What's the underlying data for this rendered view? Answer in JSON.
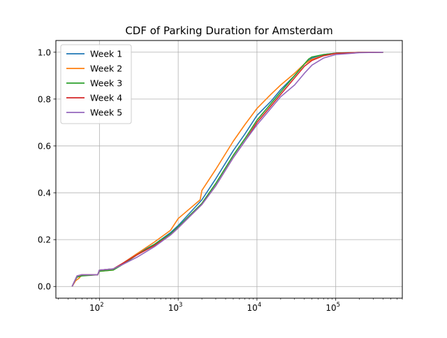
{
  "chart_data": {
    "type": "line",
    "title": "CDF of Parking Duration for Amsterdam",
    "xlabel": "",
    "ylabel": "",
    "xscale": "log",
    "xlim": [
      28,
      700000
    ],
    "ylim": [
      -0.05,
      1.05
    ],
    "x_ticks": [
      {
        "value": 100,
        "base": "10",
        "exp": "2"
      },
      {
        "value": 1000,
        "base": "10",
        "exp": "3"
      },
      {
        "value": 10000,
        "base": "10",
        "exp": "4"
      },
      {
        "value": 100000,
        "base": "10",
        "exp": "5"
      }
    ],
    "y_ticks": [
      {
        "value": 0.0,
        "label": "0.0"
      },
      {
        "value": 0.2,
        "label": "0.2"
      },
      {
        "value": 0.4,
        "label": "0.4"
      },
      {
        "value": 0.6,
        "label": "0.6"
      },
      {
        "value": 0.8,
        "label": "0.8"
      },
      {
        "value": 1.0,
        "label": "1.0"
      }
    ],
    "grid": true,
    "legend": "top-left",
    "series": [
      {
        "name": "Week 1",
        "color": "#1f77b4",
        "points": [
          [
            45,
            0.0
          ],
          [
            48,
            0.02
          ],
          [
            52,
            0.045
          ],
          [
            60,
            0.05
          ],
          [
            95,
            0.05
          ],
          [
            100,
            0.07
          ],
          [
            150,
            0.075
          ],
          [
            200,
            0.1
          ],
          [
            300,
            0.14
          ],
          [
            500,
            0.18
          ],
          [
            800,
            0.23
          ],
          [
            1000,
            0.26
          ],
          [
            2000,
            0.37
          ],
          [
            3000,
            0.46
          ],
          [
            5000,
            0.58
          ],
          [
            7000,
            0.65
          ],
          [
            10000,
            0.73
          ],
          [
            15000,
            0.79
          ],
          [
            20000,
            0.84
          ],
          [
            30000,
            0.9
          ],
          [
            40000,
            0.95
          ],
          [
            50000,
            0.975
          ],
          [
            70000,
            0.99
          ],
          [
            100000,
            0.996
          ],
          [
            200000,
            0.999
          ],
          [
            400000,
            1.0
          ]
        ]
      },
      {
        "name": "Week 2",
        "color": "#ff7f0e",
        "points": [
          [
            45,
            0.0
          ],
          [
            50,
            0.025
          ],
          [
            55,
            0.035
          ],
          [
            60,
            0.05
          ],
          [
            95,
            0.05
          ],
          [
            100,
            0.065
          ],
          [
            150,
            0.07
          ],
          [
            200,
            0.1
          ],
          [
            300,
            0.14
          ],
          [
            500,
            0.19
          ],
          [
            800,
            0.24
          ],
          [
            1000,
            0.29
          ],
          [
            1900,
            0.37
          ],
          [
            2000,
            0.41
          ],
          [
            3000,
            0.5
          ],
          [
            5000,
            0.62
          ],
          [
            7000,
            0.69
          ],
          [
            10000,
            0.76
          ],
          [
            15000,
            0.82
          ],
          [
            20000,
            0.86
          ],
          [
            30000,
            0.91
          ],
          [
            40000,
            0.95
          ],
          [
            50000,
            0.97
          ],
          [
            70000,
            0.985
          ],
          [
            100000,
            0.995
          ],
          [
            200000,
            0.999
          ],
          [
            400000,
            1.0
          ]
        ]
      },
      {
        "name": "Week 3",
        "color": "#2ca02c",
        "points": [
          [
            45,
            0.0
          ],
          [
            48,
            0.02
          ],
          [
            52,
            0.04
          ],
          [
            60,
            0.045
          ],
          [
            95,
            0.05
          ],
          [
            100,
            0.065
          ],
          [
            150,
            0.07
          ],
          [
            200,
            0.095
          ],
          [
            300,
            0.135
          ],
          [
            500,
            0.18
          ],
          [
            800,
            0.225
          ],
          [
            1000,
            0.255
          ],
          [
            2000,
            0.355
          ],
          [
            3000,
            0.44
          ],
          [
            5000,
            0.56
          ],
          [
            7000,
            0.63
          ],
          [
            10000,
            0.71
          ],
          [
            15000,
            0.78
          ],
          [
            20000,
            0.83
          ],
          [
            30000,
            0.9
          ],
          [
            45000,
            0.97
          ],
          [
            50000,
            0.98
          ],
          [
            70000,
            0.99
          ],
          [
            100000,
            0.996
          ],
          [
            200000,
            0.999
          ],
          [
            400000,
            1.0
          ]
        ]
      },
      {
        "name": "Week 4",
        "color": "#d62728",
        "points": [
          [
            45,
            0.0
          ],
          [
            48,
            0.02
          ],
          [
            52,
            0.045
          ],
          [
            60,
            0.05
          ],
          [
            95,
            0.05
          ],
          [
            100,
            0.07
          ],
          [
            150,
            0.075
          ],
          [
            200,
            0.1
          ],
          [
            300,
            0.135
          ],
          [
            500,
            0.175
          ],
          [
            800,
            0.22
          ],
          [
            1000,
            0.25
          ],
          [
            2000,
            0.35
          ],
          [
            3000,
            0.43
          ],
          [
            5000,
            0.55
          ],
          [
            7000,
            0.62
          ],
          [
            10000,
            0.7
          ],
          [
            15000,
            0.77
          ],
          [
            20000,
            0.82
          ],
          [
            30000,
            0.89
          ],
          [
            40000,
            0.94
          ],
          [
            50000,
            0.965
          ],
          [
            70000,
            0.985
          ],
          [
            100000,
            0.995
          ],
          [
            200000,
            0.999
          ],
          [
            400000,
            1.0
          ]
        ]
      },
      {
        "name": "Week 5",
        "color": "#9467bd",
        "points": [
          [
            45,
            0.0
          ],
          [
            48,
            0.02
          ],
          [
            52,
            0.045
          ],
          [
            60,
            0.05
          ],
          [
            95,
            0.05
          ],
          [
            100,
            0.07
          ],
          [
            150,
            0.075
          ],
          [
            200,
            0.095
          ],
          [
            300,
            0.125
          ],
          [
            500,
            0.17
          ],
          [
            800,
            0.22
          ],
          [
            1000,
            0.25
          ],
          [
            2000,
            0.35
          ],
          [
            3000,
            0.43
          ],
          [
            5000,
            0.55
          ],
          [
            7000,
            0.62
          ],
          [
            10000,
            0.69
          ],
          [
            15000,
            0.76
          ],
          [
            20000,
            0.81
          ],
          [
            30000,
            0.86
          ],
          [
            40000,
            0.91
          ],
          [
            50000,
            0.945
          ],
          [
            70000,
            0.975
          ],
          [
            100000,
            0.99
          ],
          [
            200000,
            0.998
          ],
          [
            400000,
            1.0
          ]
        ]
      }
    ]
  }
}
